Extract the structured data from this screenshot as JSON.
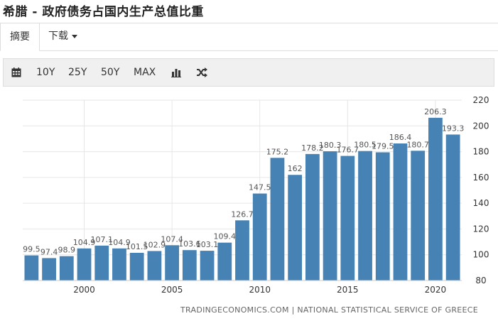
{
  "header": {
    "title": "希腊 - 政府债务占国内生产总值比重"
  },
  "tabs": [
    {
      "label": "摘要"
    },
    {
      "label": "下载"
    }
  ],
  "toolbar": {
    "calendar_icon": "calendar-icon",
    "ranges": [
      "10Y",
      "25Y",
      "50Y",
      "MAX"
    ],
    "bar_chart_icon": "bar-chart-icon",
    "shuffle_icon": "shuffle-icon"
  },
  "colors": {
    "bar": "#4682b4",
    "grid": "#e6e6e6",
    "text": "#333333"
  },
  "chart_data": {
    "type": "bar",
    "x": [
      1997,
      1998,
      1999,
      2000,
      2001,
      2002,
      2003,
      2004,
      2005,
      2006,
      2007,
      2008,
      2009,
      2010,
      2011,
      2012,
      2013,
      2014,
      2015,
      2016,
      2017,
      2018,
      2019,
      2020,
      2021
    ],
    "values": [
      99.5,
      97.4,
      98.9,
      104.9,
      107.1,
      104.9,
      101.5,
      102.9,
      107.4,
      103.6,
      103.1,
      109.4,
      126.7,
      147.5,
      175.2,
      162,
      178.2,
      180.3,
      176.7,
      180.5,
      179.5,
      186.4,
      180.7,
      206.3,
      193.3
    ],
    "xticks": [
      "2000",
      "2005",
      "2010",
      "2015",
      "2020"
    ],
    "yticks": [
      "80",
      "100",
      "120",
      "140",
      "160",
      "180",
      "200",
      "220"
    ],
    "ylim": [
      80,
      220
    ],
    "grid": true,
    "y_axis_side": "right"
  },
  "footer": {
    "source": "TRADINGECONOMICS.COM | NATIONAL STATISTICAL SERVICE OF GREECE"
  }
}
